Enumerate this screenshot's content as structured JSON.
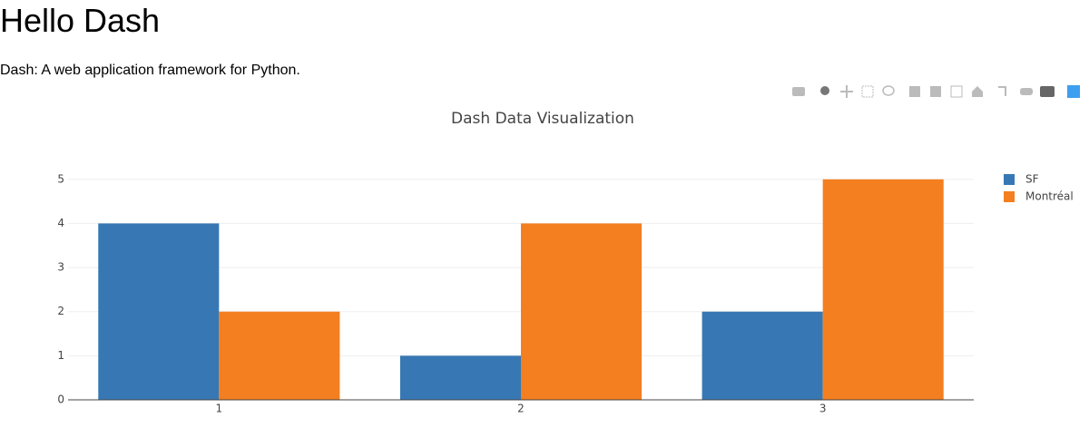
{
  "header": {
    "title": "Hello Dash",
    "subtitle": "Dash: A web application framework for Python."
  },
  "chart_data": {
    "type": "bar",
    "title": "Dash Data Visualization",
    "categories": [
      "1",
      "2",
      "3"
    ],
    "series": [
      {
        "name": "SF",
        "color": "#3778b4",
        "values": [
          4,
          1,
          2
        ]
      },
      {
        "name": "Montréal",
        "color": "#f47f20",
        "values": [
          2,
          4,
          5
        ]
      }
    ],
    "ylim": [
      0,
      5.263
    ],
    "yticks": [
      0,
      1,
      2,
      3,
      4,
      5
    ],
    "grid": true,
    "legend": "top-right"
  }
}
